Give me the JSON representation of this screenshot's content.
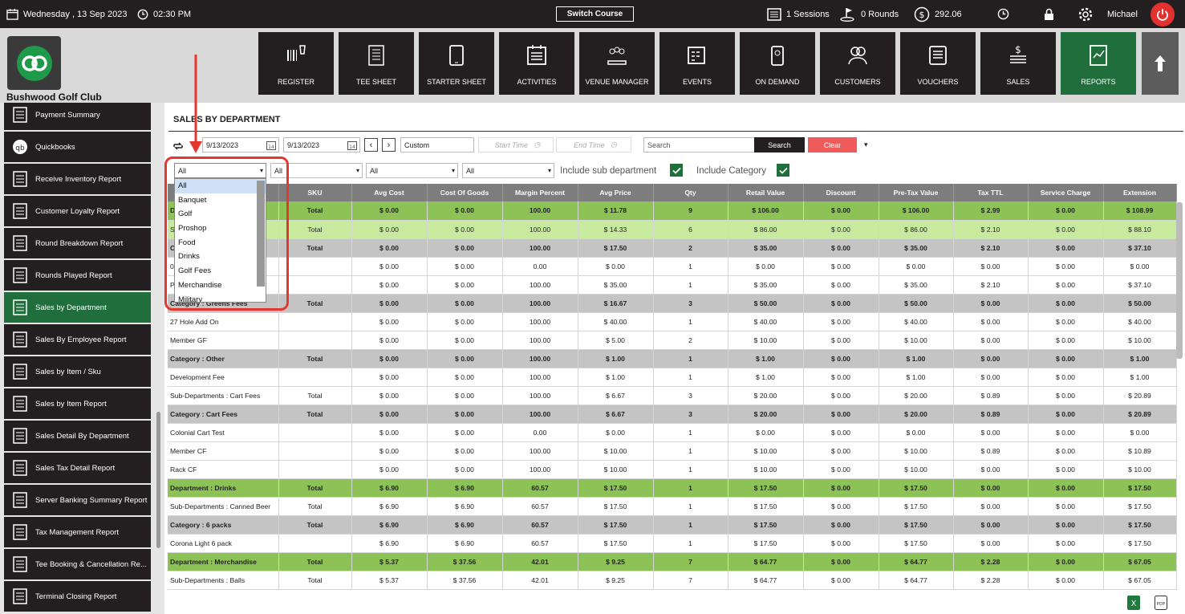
{
  "topbar": {
    "date": "Wednesday ,  13 Sep 2023",
    "time": "02:30 PM",
    "switch_course": "Switch Course",
    "sessions": "1 Sessions",
    "rounds": "0 Rounds",
    "balance": "292.06",
    "user": "Michael"
  },
  "club": {
    "name": "Bushwood Golf Club"
  },
  "nav": [
    {
      "label": "REGISTER",
      "icon": "barcode-scanner-icon"
    },
    {
      "label": "TEE SHEET",
      "icon": "tee-sheet-icon"
    },
    {
      "label": "STARTER SHEET",
      "icon": "tablet-icon"
    },
    {
      "label": "ACTIVITIES",
      "icon": "calendar-list-icon"
    },
    {
      "label": "VENUE MANAGER",
      "icon": "venue-icon"
    },
    {
      "label": "EVENTS",
      "icon": "events-icon"
    },
    {
      "label": "ON DEMAND",
      "icon": "phone-icon"
    },
    {
      "label": "CUSTOMERS",
      "icon": "customers-icon"
    },
    {
      "label": "VOUCHERS",
      "icon": "vouchers-icon"
    },
    {
      "label": "SALES",
      "icon": "sales-icon"
    },
    {
      "label": "REPORTS",
      "icon": "reports-icon"
    }
  ],
  "sidebar": [
    {
      "label": "Payment Summary"
    },
    {
      "label": "Quickbooks"
    },
    {
      "label": "Receive Inventory Report"
    },
    {
      "label": "Customer Loyalty Report"
    },
    {
      "label": "Round Breakdown Report"
    },
    {
      "label": "Rounds Played Report"
    },
    {
      "label": "Sales by Department"
    },
    {
      "label": "Sales By Employee Report"
    },
    {
      "label": "Sales by Item / Sku"
    },
    {
      "label": "Sales by Item Report"
    },
    {
      "label": "Sales Detail By Department"
    },
    {
      "label": "Sales Tax Detail Report"
    },
    {
      "label": "Server Banking Summary Report"
    },
    {
      "label": "Tax Management Report"
    },
    {
      "label": "Tee Booking & Cancellation Re..."
    },
    {
      "label": "Terminal Closing Report"
    }
  ],
  "page": {
    "title": "SALES BY DEPARTMENT"
  },
  "filters": {
    "start_date": "9/13/2023",
    "end_date": "9/13/2023",
    "range": "Custom",
    "start_time_placeholder": "Start Time",
    "end_time_placeholder": "End Time",
    "search_placeholder": "Search",
    "search_button": "Search",
    "clear_button": "Clear",
    "dept_select": "All",
    "sub_select": "All",
    "cat_select": "All",
    "item_select": "All",
    "include_sub": "Include sub department",
    "include_cat": "Include Category"
  },
  "dropdown": {
    "options": [
      "All",
      "Banquet",
      "Golf",
      "Proshop",
      "Food",
      "Drinks",
      "Golf Fees",
      "Merchandise",
      "Military"
    ]
  },
  "table": {
    "columns": [
      "",
      "SKU",
      "Avg Cost",
      "Cost Of Goods",
      "Margin Percent",
      "Avg Price",
      "Qty",
      "Retail Value",
      "Discount",
      "Pre-Tax Value",
      "Tax TTL",
      "Service Charge",
      "Extension"
    ],
    "rows": [
      {
        "type": "dep",
        "cells": [
          "D",
          "Total",
          "$ 0.00",
          "$ 0.00",
          "100.00",
          "$ 11.78",
          "9",
          "$ 106.00",
          "$ 0.00",
          "$ 106.00",
          "$ 2.99",
          "$ 0.00",
          "$ 108.99"
        ]
      },
      {
        "type": "sub",
        "cells": [
          "S                                  es",
          "Total",
          "$ 0.00",
          "$ 0.00",
          "100.00",
          "$ 14.33",
          "6",
          "$ 86.00",
          "$ 0.00",
          "$ 86.00",
          "$ 2.10",
          "$ 0.00",
          "$ 88.10"
        ]
      },
      {
        "type": "cat",
        "cells": [
          "C",
          "Total",
          "$ 0.00",
          "$ 0.00",
          "100.00",
          "$ 17.50",
          "2",
          "$ 35.00",
          "$ 0.00",
          "$ 35.00",
          "$ 2.10",
          "$ 0.00",
          "$ 37.10"
        ]
      },
      {
        "type": "item",
        "cells": [
          "0",
          "",
          "$ 0.00",
          "$ 0.00",
          "0.00",
          "$ 0.00",
          "1",
          "$ 0.00",
          "$ 0.00",
          "$ 0.00",
          "$ 0.00",
          "$ 0.00",
          "$ 0.00"
        ]
      },
      {
        "type": "item",
        "cells": [
          "P",
          "",
          "$ 0.00",
          "$ 0.00",
          "100.00",
          "$ 35.00",
          "1",
          "$ 35.00",
          "$ 0.00",
          "$ 35.00",
          "$ 2.10",
          "$ 0.00",
          "$ 37.10"
        ]
      },
      {
        "type": "cat",
        "cells": [
          "Category : Greens Fees",
          "Total",
          "$ 0.00",
          "$ 0.00",
          "100.00",
          "$ 16.67",
          "3",
          "$ 50.00",
          "$ 0.00",
          "$ 50.00",
          "$ 0.00",
          "$ 0.00",
          "$ 50.00"
        ]
      },
      {
        "type": "item",
        "cells": [
          "27 Hole Add On",
          "",
          "$ 0.00",
          "$ 0.00",
          "100.00",
          "$ 40.00",
          "1",
          "$ 40.00",
          "$ 0.00",
          "$ 40.00",
          "$ 0.00",
          "$ 0.00",
          "$ 40.00"
        ]
      },
      {
        "type": "item",
        "cells": [
          "Member GF",
          "",
          "$ 0.00",
          "$ 0.00",
          "100.00",
          "$ 5.00",
          "2",
          "$ 10.00",
          "$ 0.00",
          "$ 10.00",
          "$ 0.00",
          "$ 0.00",
          "$ 10.00"
        ]
      },
      {
        "type": "cat",
        "cells": [
          "Category : Other",
          "Total",
          "$ 0.00",
          "$ 0.00",
          "100.00",
          "$ 1.00",
          "1",
          "$ 1.00",
          "$ 0.00",
          "$ 1.00",
          "$ 0.00",
          "$ 0.00",
          "$ 1.00"
        ]
      },
      {
        "type": "item",
        "cells": [
          "Development Fee",
          "",
          "$ 0.00",
          "$ 0.00",
          "100.00",
          "$ 1.00",
          "1",
          "$ 1.00",
          "$ 0.00",
          "$ 1.00",
          "$ 0.00",
          "$ 0.00",
          "$ 1.00"
        ]
      },
      {
        "type": "subdep",
        "cells": [
          "Sub-Departments : Cart Fees",
          "Total",
          "$ 0.00",
          "$ 0.00",
          "100.00",
          "$ 6.67",
          "3",
          "$ 20.00",
          "$ 0.00",
          "$ 20.00",
          "$ 0.89",
          "$ 0.00",
          "$ 20.89"
        ]
      },
      {
        "type": "cat",
        "cells": [
          "Category : Cart Fees",
          "Total",
          "$ 0.00",
          "$ 0.00",
          "100.00",
          "$ 6.67",
          "3",
          "$ 20.00",
          "$ 0.00",
          "$ 20.00",
          "$ 0.89",
          "$ 0.00",
          "$ 20.89"
        ]
      },
      {
        "type": "item",
        "cells": [
          "Colonial Cart Test",
          "",
          "$ 0.00",
          "$ 0.00",
          "0.00",
          "$ 0.00",
          "1",
          "$ 0.00",
          "$ 0.00",
          "$ 0.00",
          "$ 0.00",
          "$ 0.00",
          "$ 0.00"
        ]
      },
      {
        "type": "item",
        "cells": [
          "Member CF",
          "",
          "$ 0.00",
          "$ 0.00",
          "100.00",
          "$ 10.00",
          "1",
          "$ 10.00",
          "$ 0.00",
          "$ 10.00",
          "$ 0.89",
          "$ 0.00",
          "$ 10.89"
        ]
      },
      {
        "type": "item",
        "cells": [
          "Rack CF",
          "",
          "$ 0.00",
          "$ 0.00",
          "100.00",
          "$ 10.00",
          "1",
          "$ 10.00",
          "$ 0.00",
          "$ 10.00",
          "$ 0.00",
          "$ 0.00",
          "$ 10.00"
        ]
      },
      {
        "type": "dep",
        "cells": [
          "Department : Drinks",
          "Total",
          "$ 6.90",
          "$ 6.90",
          "60.57",
          "$ 17.50",
          "1",
          "$ 17.50",
          "$ 0.00",
          "$ 17.50",
          "$ 0.00",
          "$ 0.00",
          "$ 17.50"
        ]
      },
      {
        "type": "subdep",
        "cells": [
          "Sub-Departments : Canned Beer",
          "Total",
          "$ 6.90",
          "$ 6.90",
          "60.57",
          "$ 17.50",
          "1",
          "$ 17.50",
          "$ 0.00",
          "$ 17.50",
          "$ 0.00",
          "$ 0.00",
          "$ 17.50"
        ]
      },
      {
        "type": "cat",
        "cells": [
          "Category : 6 packs",
          "Total",
          "$ 6.90",
          "$ 6.90",
          "60.57",
          "$ 17.50",
          "1",
          "$ 17.50",
          "$ 0.00",
          "$ 17.50",
          "$ 0.00",
          "$ 0.00",
          "$ 17.50"
        ]
      },
      {
        "type": "item",
        "cells": [
          "Corona Light 6 pack",
          "",
          "$ 6.90",
          "$ 6.90",
          "60.57",
          "$ 17.50",
          "1",
          "$ 17.50",
          "$ 0.00",
          "$ 17.50",
          "$ 0.00",
          "$ 0.00",
          "$ 17.50"
        ]
      },
      {
        "type": "dep",
        "cells": [
          "Department : Merchandise",
          "Total",
          "$ 5.37",
          "$ 37.56",
          "42.01",
          "$ 9.25",
          "7",
          "$ 64.77",
          "$ 0.00",
          "$ 64.77",
          "$ 2.28",
          "$ 0.00",
          "$ 67.05"
        ]
      },
      {
        "type": "subdep",
        "cells": [
          "Sub-Departments : Balls",
          "Total",
          "$ 5.37",
          "$ 37.56",
          "42.01",
          "$ 9.25",
          "7",
          "$ 64.77",
          "$ 0.00",
          "$ 64.77",
          "$ 2.28",
          "$ 0.00",
          "$ 67.05"
        ]
      }
    ]
  },
  "colors": {
    "dark": "#231f20",
    "green": "#1f6e3c",
    "dep_row": "#8dc356",
    "sub_row": "#c8ea9f",
    "cat_row": "#c4c4c4",
    "clear": "#ef5b5b",
    "highlight": "#e3372f"
  }
}
